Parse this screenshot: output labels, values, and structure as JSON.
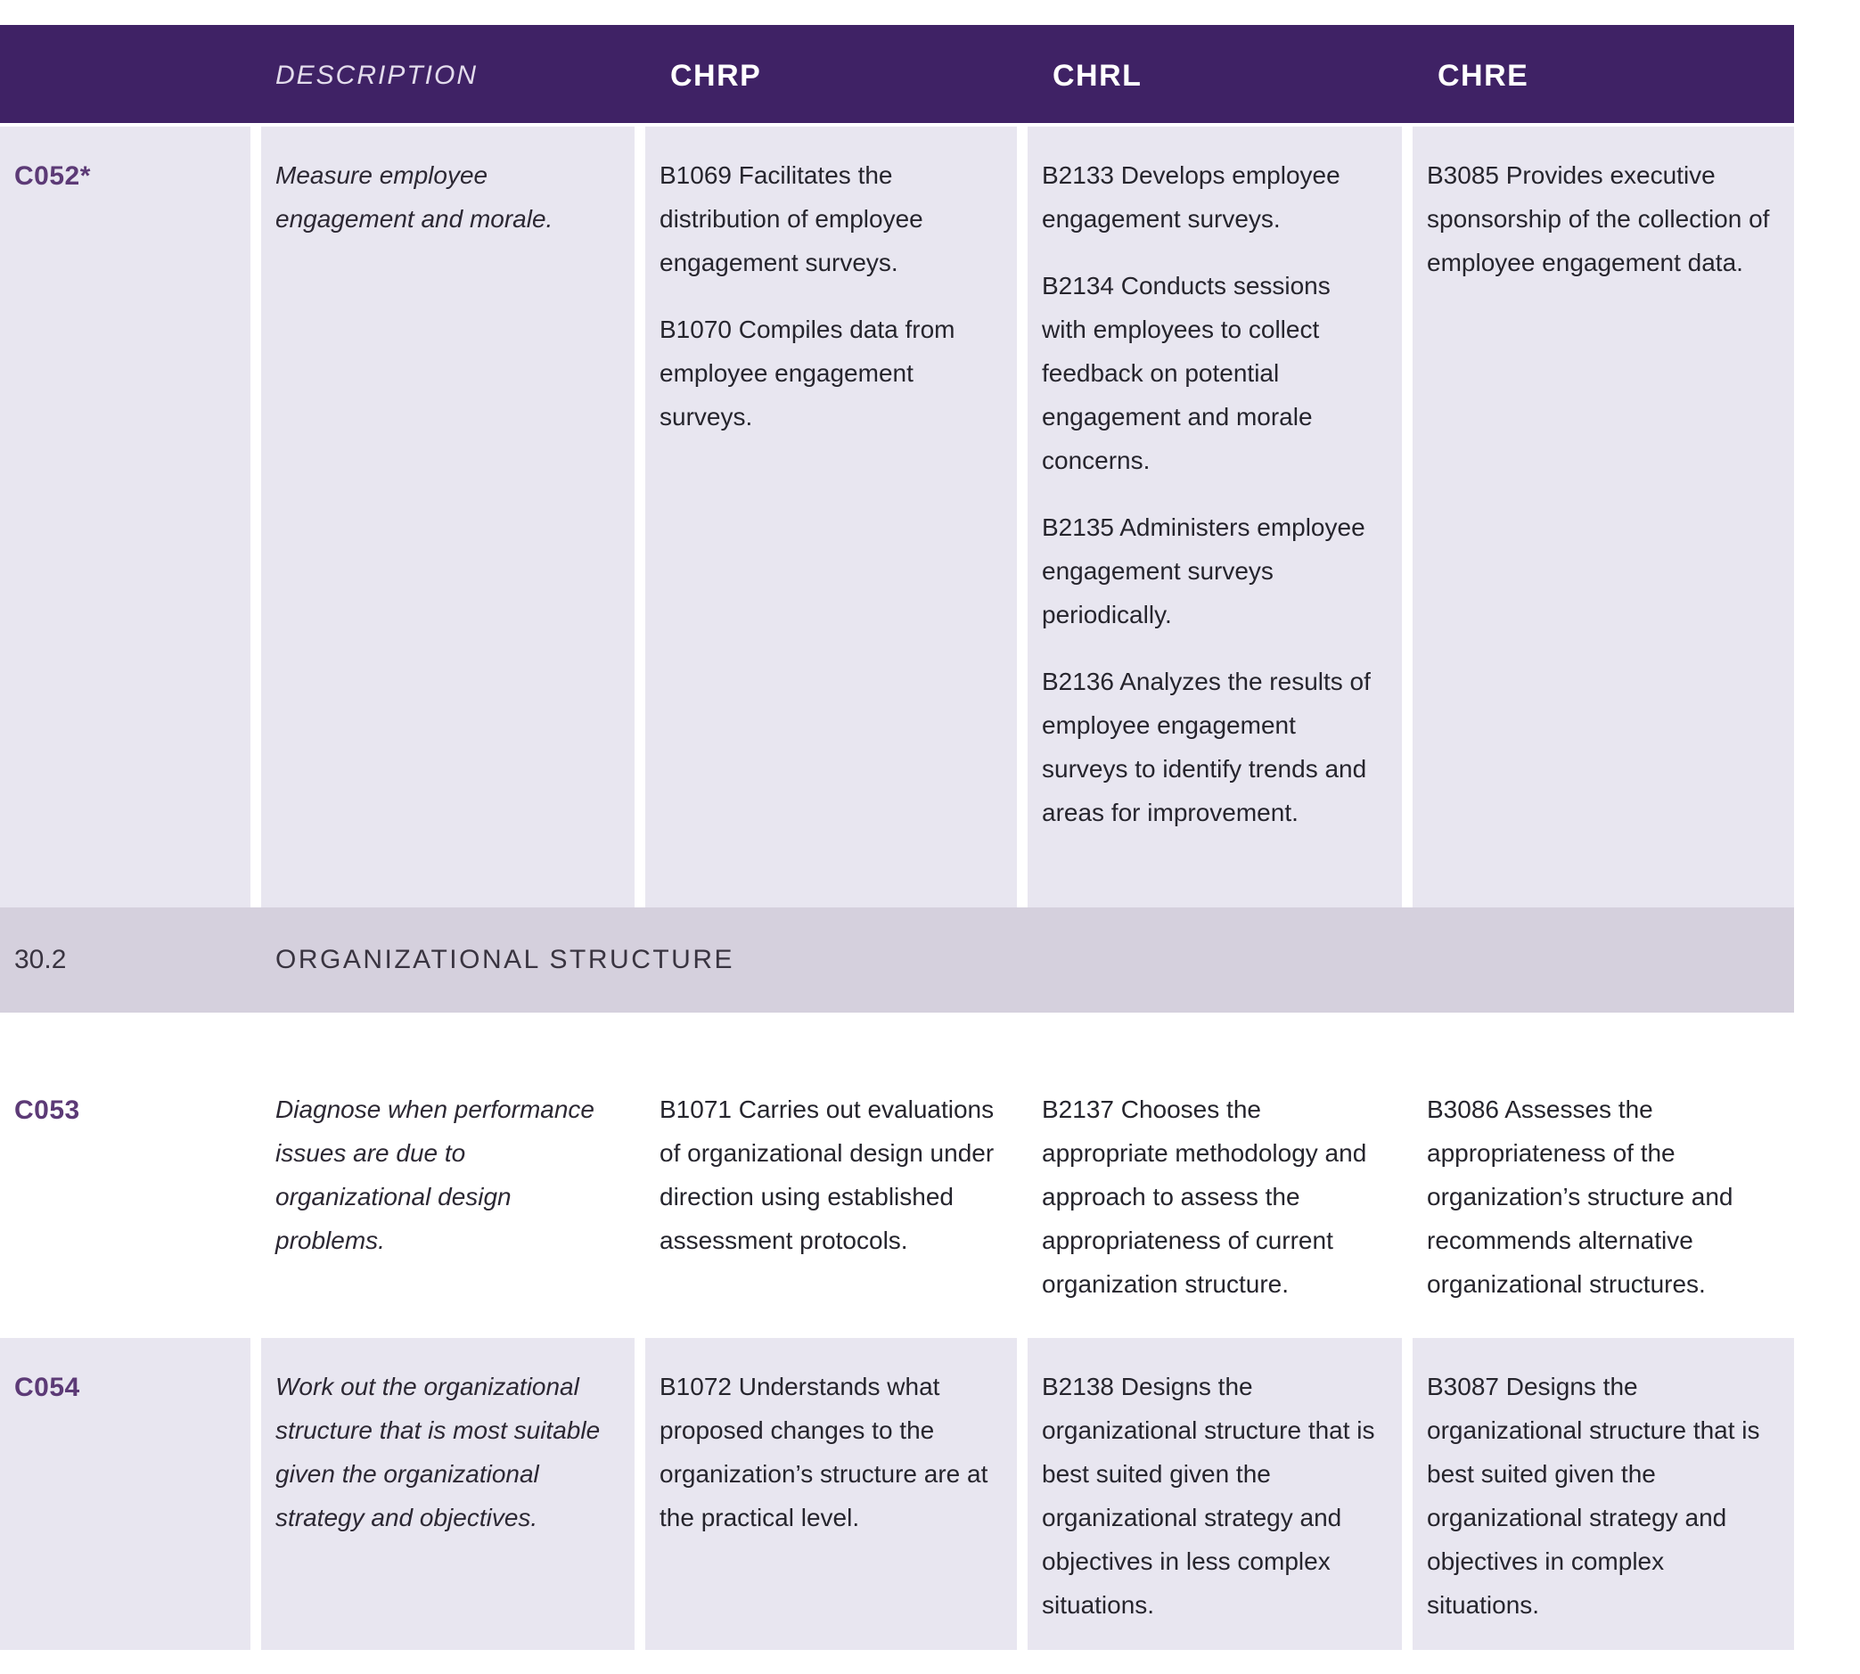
{
  "colors": {
    "header_background": "#3f2265",
    "cell_background": "#e8e6f0",
    "section_band_background": "#d5d0dd",
    "code_text": "#5c3a76",
    "body_text": "#26252d"
  },
  "header": {
    "code_column": "",
    "description": "DESCRIPTION",
    "chrp": "CHRP",
    "chrl": "CHRL",
    "chre": "CHRE"
  },
  "rows": [
    {
      "type": "competency",
      "code": "C052*",
      "description": "Measure employee engagement and morale.",
      "chrp": [
        "B1069 Facilitates the distribution of employee engagement surveys.",
        "B1070 Compiles data from employee engagement surveys."
      ],
      "chrl": [
        "B2133 Develops employee engagement surveys.",
        "B2134 Conducts sessions with employees to collect feedback on potential engagement and morale concerns.",
        "B2135 Administers employee engagement surveys periodically.",
        "B2136 Analyzes the results of employee engagement surveys to identify trends and areas for improvement."
      ],
      "chre": [
        "B3085 Provides executive sponsorship of the collection of employee engagement data."
      ]
    },
    {
      "type": "section",
      "number": "30.2",
      "title": "ORGANIZATIONAL STRUCTURE"
    },
    {
      "type": "competency",
      "code": "C053",
      "description": "Diagnose when performance issues are due to organizational design problems.",
      "chrp": [
        "B1071 Carries out evaluations of organizational design under direction using established assessment protocols."
      ],
      "chrl": [
        "B2137 Chooses the appropriate methodology and approach to assess the appropriateness of current organization structure."
      ],
      "chre": [
        "B3086 Assesses the appropriateness of the organization’s structure and recommends alternative organizational structures."
      ]
    },
    {
      "type": "competency",
      "code": "C054",
      "description": "Work out the organizational structure that is most suitable given the organizational strategy and objectives.",
      "chrp": [
        "B1072 Understands what proposed changes to the organization’s structure are at the practical level."
      ],
      "chrl": [
        "B2138 Designs the organizational structure that is best suited given the organizational strategy and objectives in less complex situations."
      ],
      "chre": [
        "B3087 Designs the organizational structure that is best suited given the organizational strategy and objectives in complex situations."
      ]
    }
  ]
}
